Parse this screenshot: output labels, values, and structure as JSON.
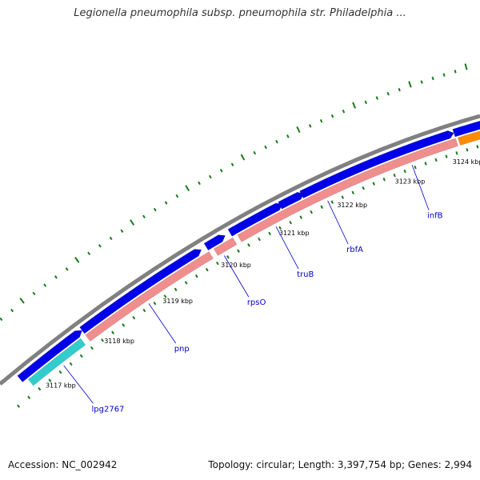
{
  "title": "Legionella pneumophila subsp. pneumophila str. Philadelphia ...",
  "footer": {
    "accession": "Accession: NC_002942",
    "summary": "Topology: circular; Length: 3,397,754 bp; Genes: 2,994"
  },
  "colors": {
    "backbone": "#808080",
    "forward_cds": "#0000e8",
    "reverse_cds": "#f08e8e",
    "other_feature": "#33cccc",
    "highlight_feature": "#ff8c00",
    "ticks": "#1a7a1a",
    "labels": "#0000cc"
  },
  "ticks": [
    {
      "label": "3117 kbp"
    },
    {
      "label": "3118 kbp"
    },
    {
      "label": "3119 kbp"
    },
    {
      "label": "3120 kbp"
    },
    {
      "label": "3121 kbp"
    },
    {
      "label": "3122 kbp"
    },
    {
      "label": "3123 kbp"
    },
    {
      "label": "3124 kbp"
    }
  ],
  "genes": [
    {
      "name": "lpg2767"
    },
    {
      "name": "pnp"
    },
    {
      "name": "rpsO"
    },
    {
      "name": "truB"
    },
    {
      "name": "rbfA"
    },
    {
      "name": "infB"
    }
  ]
}
